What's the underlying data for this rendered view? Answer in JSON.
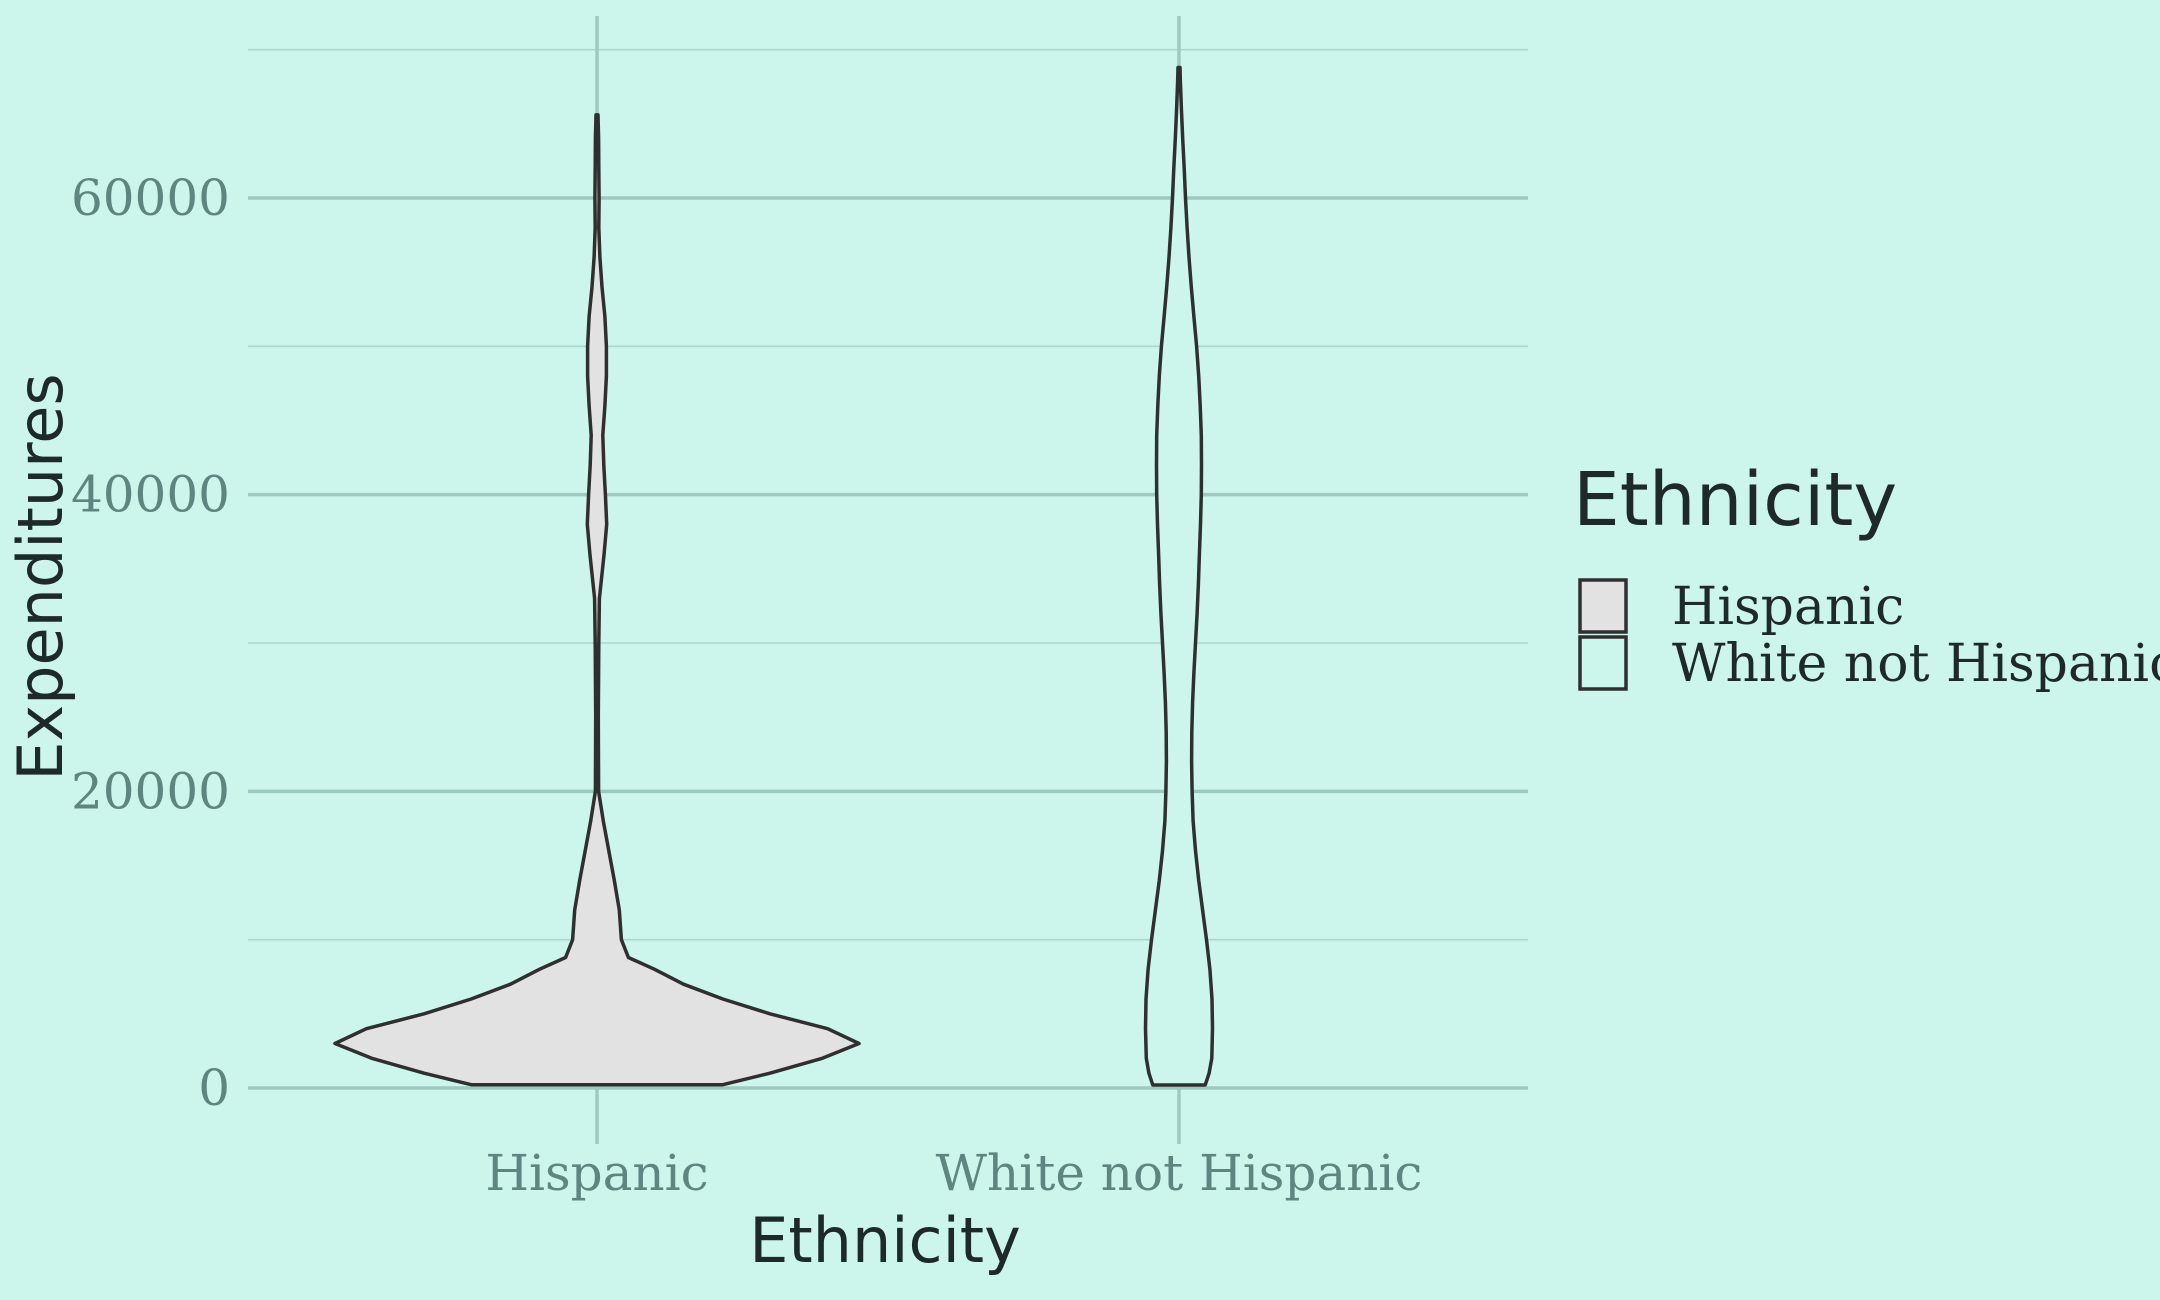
{
  "chart_data": {
    "type": "violin",
    "xlabel": "Ethnicity",
    "ylabel": "Expenditures",
    "categories": [
      "Hispanic",
      "White not Hispanic"
    ],
    "ylim": [
      -300,
      71000
    ],
    "yticks": [
      0,
      20000,
      40000,
      60000
    ],
    "ytick_labels": [
      "0",
      "20000",
      "40000",
      "60000"
    ],
    "grid": true,
    "legend": {
      "title": "Ethnicity",
      "position": "right",
      "entries": [
        "Hispanic",
        "White not Hispanic"
      ]
    },
    "series": [
      {
        "name": "Hispanic",
        "fill": "#e2e2e2",
        "range": [
          222,
          65600
        ],
        "density_profile": [
          [
            222,
            0.48
          ],
          [
            1000,
            0.66
          ],
          [
            2000,
            0.86
          ],
          [
            3000,
            1.0
          ],
          [
            4000,
            0.88
          ],
          [
            5000,
            0.66
          ],
          [
            6000,
            0.48
          ],
          [
            7000,
            0.33
          ],
          [
            8000,
            0.22
          ],
          [
            8800,
            0.12
          ],
          [
            10000,
            0.093
          ],
          [
            12000,
            0.085
          ],
          [
            14000,
            0.066
          ],
          [
            16000,
            0.045
          ],
          [
            18000,
            0.024
          ],
          [
            20000,
            0.006
          ],
          [
            25000,
            0.005
          ],
          [
            30000,
            0.007
          ],
          [
            33000,
            0.009
          ],
          [
            36000,
            0.027
          ],
          [
            38000,
            0.037
          ],
          [
            40000,
            0.032
          ],
          [
            42000,
            0.026
          ],
          [
            44000,
            0.022
          ],
          [
            46000,
            0.03
          ],
          [
            48000,
            0.036
          ],
          [
            50000,
            0.036
          ],
          [
            52000,
            0.03
          ],
          [
            54000,
            0.019
          ],
          [
            56000,
            0.011
          ],
          [
            58000,
            0.007
          ],
          [
            60000,
            0.008
          ],
          [
            62000,
            0.007
          ],
          [
            64000,
            0.006
          ],
          [
            65600,
            0.004
          ]
        ]
      },
      {
        "name": "White not Hispanic",
        "fill": "#ccf5eb",
        "range": [
          200,
          68800
        ],
        "density_profile": [
          [
            200,
            0.1
          ],
          [
            1000,
            0.115
          ],
          [
            2000,
            0.125
          ],
          [
            4000,
            0.128
          ],
          [
            6000,
            0.126
          ],
          [
            8000,
            0.118
          ],
          [
            10000,
            0.105
          ],
          [
            12000,
            0.09
          ],
          [
            14000,
            0.075
          ],
          [
            16000,
            0.063
          ],
          [
            18000,
            0.054
          ],
          [
            20000,
            0.05
          ],
          [
            22000,
            0.048
          ],
          [
            24000,
            0.049
          ],
          [
            26000,
            0.052
          ],
          [
            28000,
            0.057
          ],
          [
            30000,
            0.063
          ],
          [
            32000,
            0.069
          ],
          [
            34000,
            0.074
          ],
          [
            36000,
            0.078
          ],
          [
            38000,
            0.082
          ],
          [
            40000,
            0.085
          ],
          [
            42000,
            0.086
          ],
          [
            44000,
            0.085
          ],
          [
            46000,
            0.081
          ],
          [
            48000,
            0.075
          ],
          [
            50000,
            0.067
          ],
          [
            52000,
            0.057
          ],
          [
            54000,
            0.047
          ],
          [
            56000,
            0.038
          ],
          [
            58000,
            0.031
          ],
          [
            60000,
            0.025
          ],
          [
            62000,
            0.02
          ],
          [
            64000,
            0.014
          ],
          [
            66000,
            0.009
          ],
          [
            68000,
            0.005
          ],
          [
            68800,
            0.004
          ]
        ]
      }
    ]
  }
}
